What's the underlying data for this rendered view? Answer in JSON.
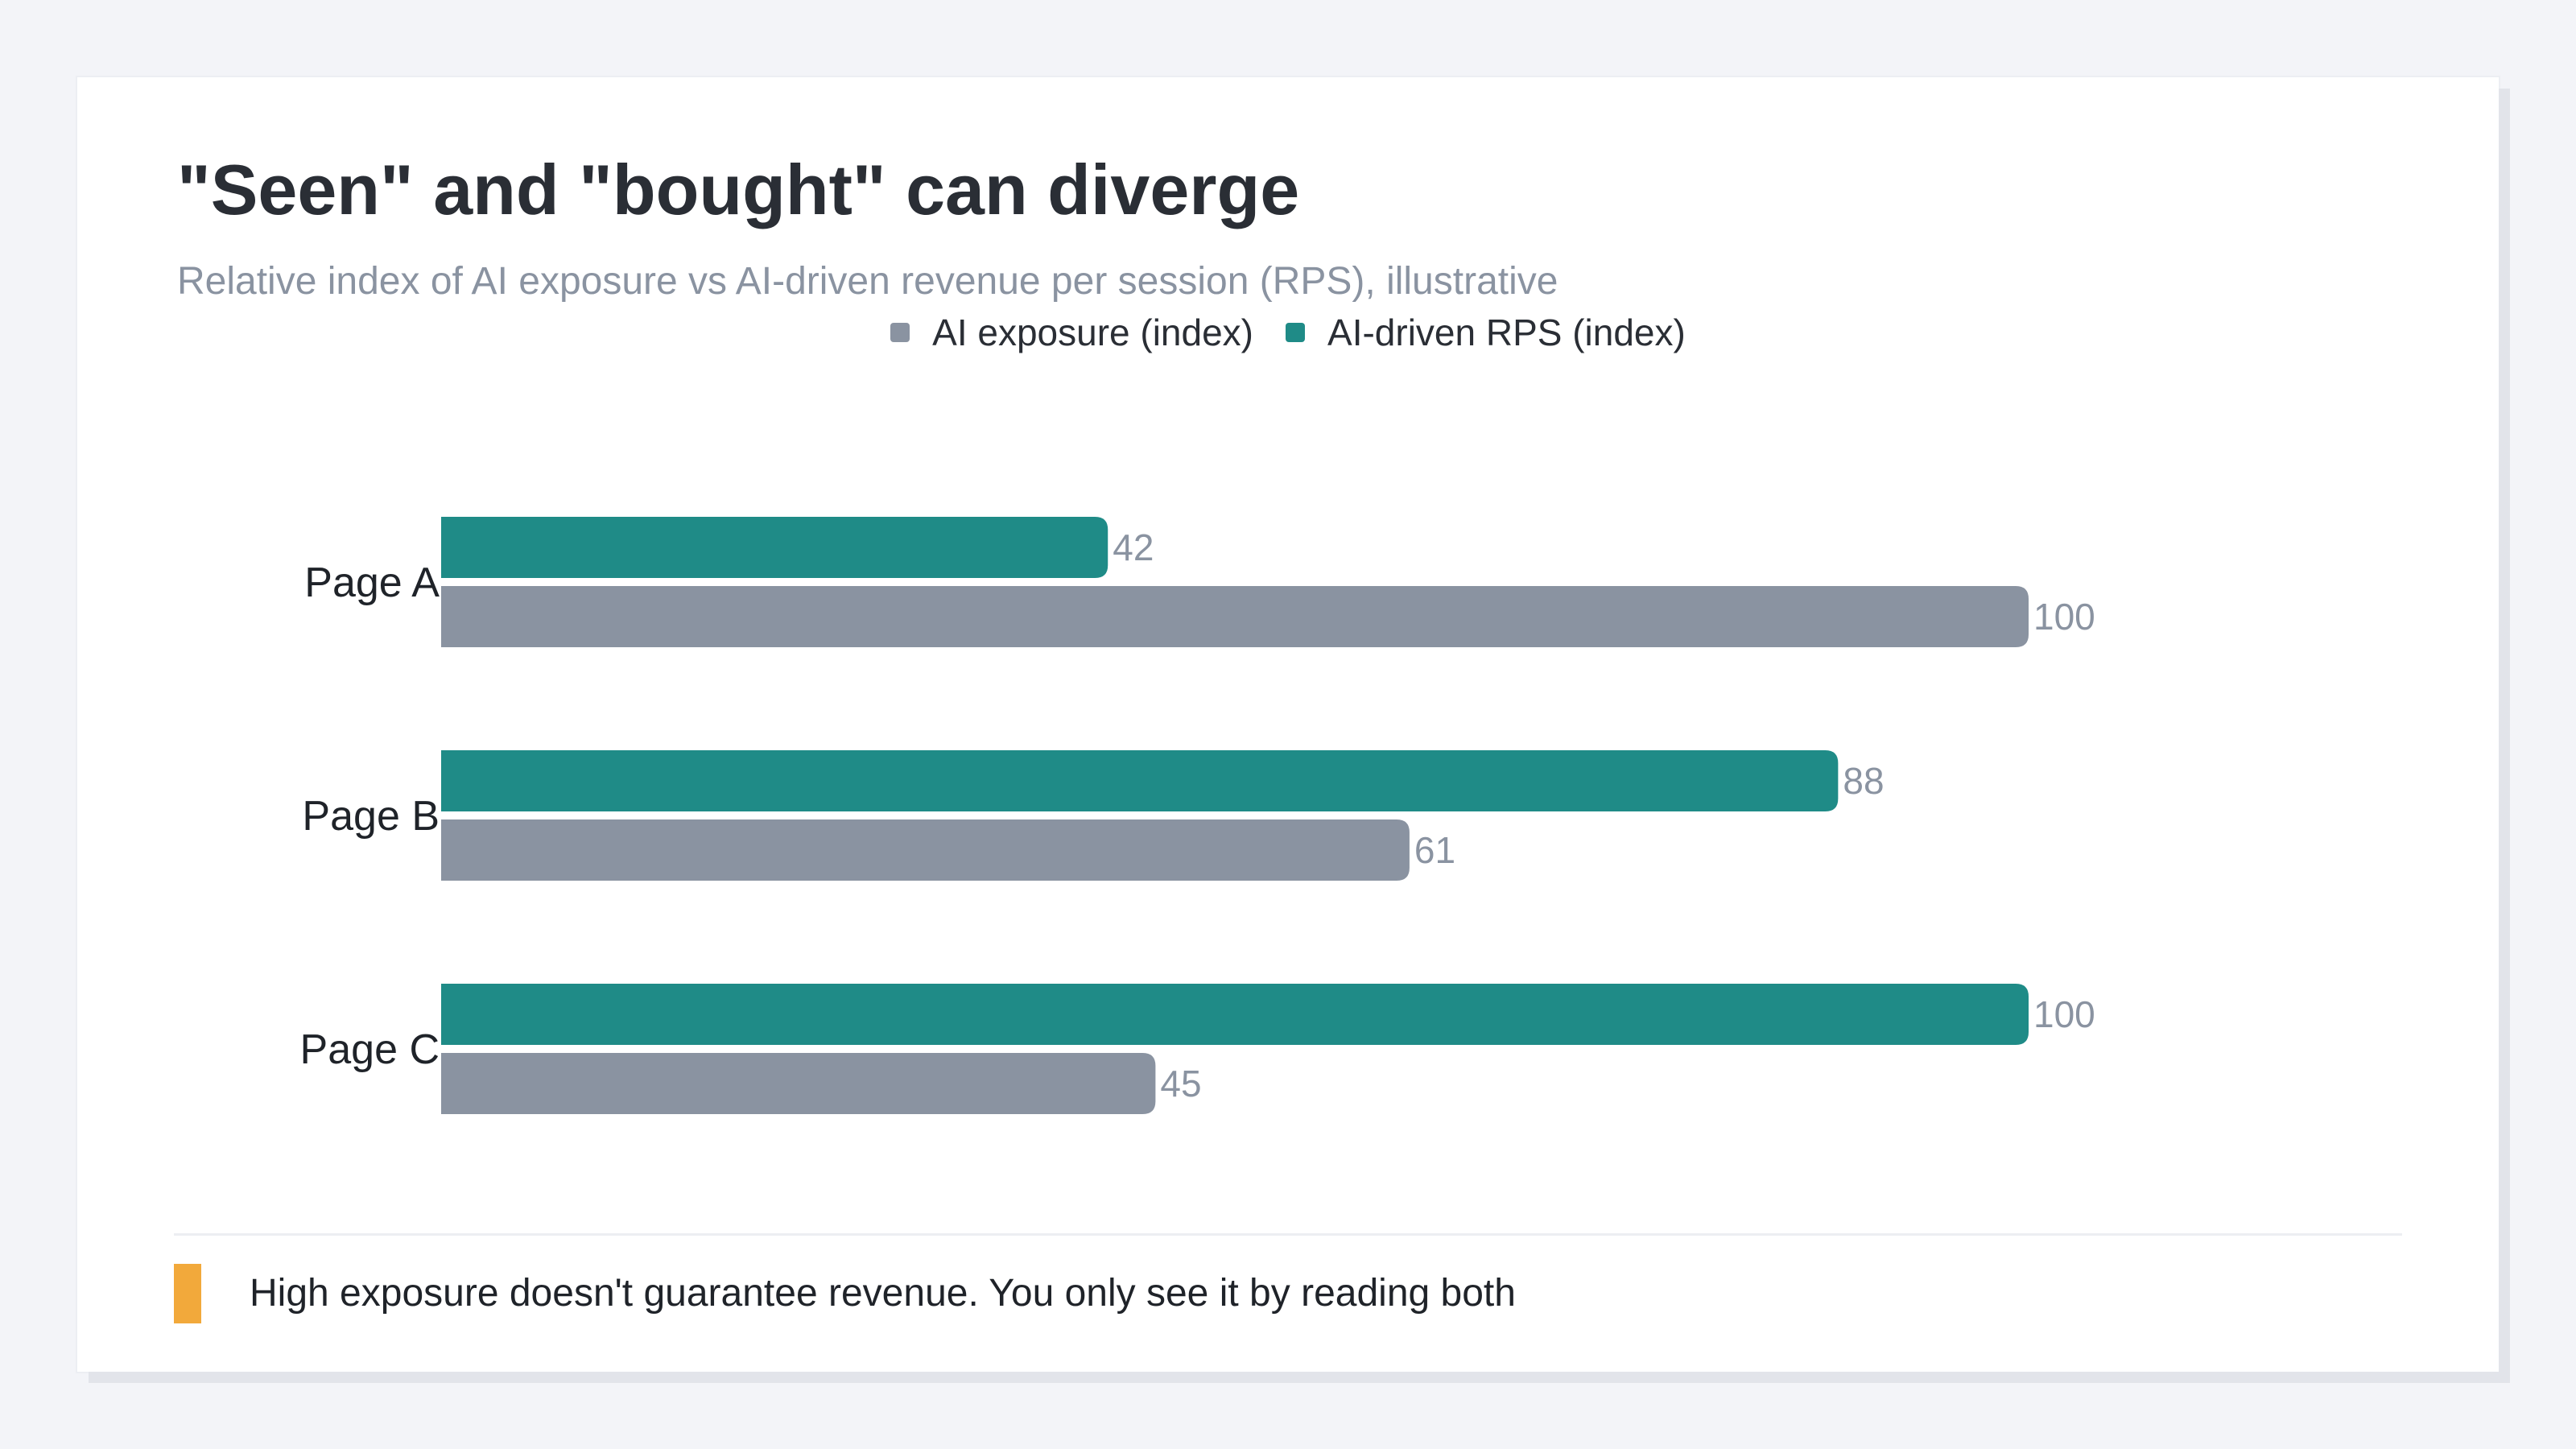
{
  "colors": {
    "exposure": "#8a93a1",
    "rps": "#1f8b87",
    "note_accent": "#f2a93b"
  },
  "note": {
    "text": "High exposure doesn't guarantee revenue. You only see it by reading both"
  },
  "chart_data": {
    "type": "bar",
    "orientation": "horizontal",
    "title": "\"Seen\" and \"bought\" can diverge",
    "subtitle": "Relative index of AI exposure vs AI-driven revenue per session (RPS), illustrative",
    "categories": [
      "Page A",
      "Page B",
      "Page C"
    ],
    "series": [
      {
        "name": "AI-driven RPS (index)",
        "color": "#1f8b87",
        "values": [
          42,
          88,
          100
        ]
      },
      {
        "name": "AI exposure (index)",
        "color": "#8a93a1",
        "values": [
          100,
          61,
          45
        ]
      }
    ],
    "legend_order": [
      1,
      0
    ],
    "legend_position": "top-center",
    "xlim": [
      0,
      100
    ],
    "grid": false,
    "data_labels": true
  }
}
